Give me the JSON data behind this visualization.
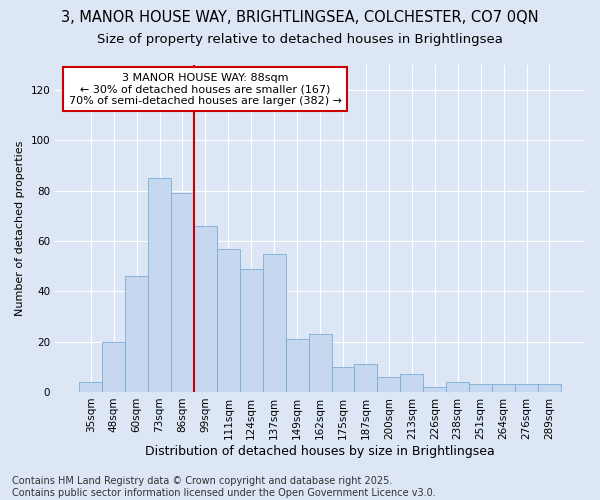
{
  "title": "3, MANOR HOUSE WAY, BRIGHTLINGSEA, COLCHESTER, CO7 0QN",
  "subtitle": "Size of property relative to detached houses in Brightlingsea",
  "xlabel": "Distribution of detached houses by size in Brightlingsea",
  "ylabel": "Number of detached properties",
  "categories": [
    "35sqm",
    "48sqm",
    "60sqm",
    "73sqm",
    "86sqm",
    "99sqm",
    "111sqm",
    "124sqm",
    "137sqm",
    "149sqm",
    "162sqm",
    "175sqm",
    "187sqm",
    "200sqm",
    "213sqm",
    "226sqm",
    "238sqm",
    "251sqm",
    "264sqm",
    "276sqm",
    "289sqm"
  ],
  "bar_heights": [
    4,
    20,
    46,
    85,
    79,
    66,
    57,
    49,
    55,
    21,
    23,
    10,
    11,
    6,
    7,
    2,
    4,
    3,
    3,
    3,
    3
  ],
  "bar_color": "#c5d8f0",
  "bar_edge_color": "#7aadd4",
  "vline_pos": 4.5,
  "vline_color": "#cc0000",
  "annotation_text": "3 MANOR HOUSE WAY: 88sqm\n← 30% of detached houses are smaller (167)\n70% of semi-detached houses are larger (382) →",
  "annotation_box_facecolor": "#ffffff",
  "annotation_box_edgecolor": "#cc0000",
  "ylim": [
    0,
    130
  ],
  "yticks": [
    0,
    20,
    40,
    60,
    80,
    100,
    120
  ],
  "background_color": "#dce6f5",
  "grid_color": "#ffffff",
  "footer": "Contains HM Land Registry data © Crown copyright and database right 2025.\nContains public sector information licensed under the Open Government Licence v3.0.",
  "title_fontsize": 10.5,
  "subtitle_fontsize": 9.5,
  "ylabel_fontsize": 8,
  "xlabel_fontsize": 9,
  "tick_fontsize": 7.5,
  "ann_fontsize": 8,
  "footer_fontsize": 7
}
